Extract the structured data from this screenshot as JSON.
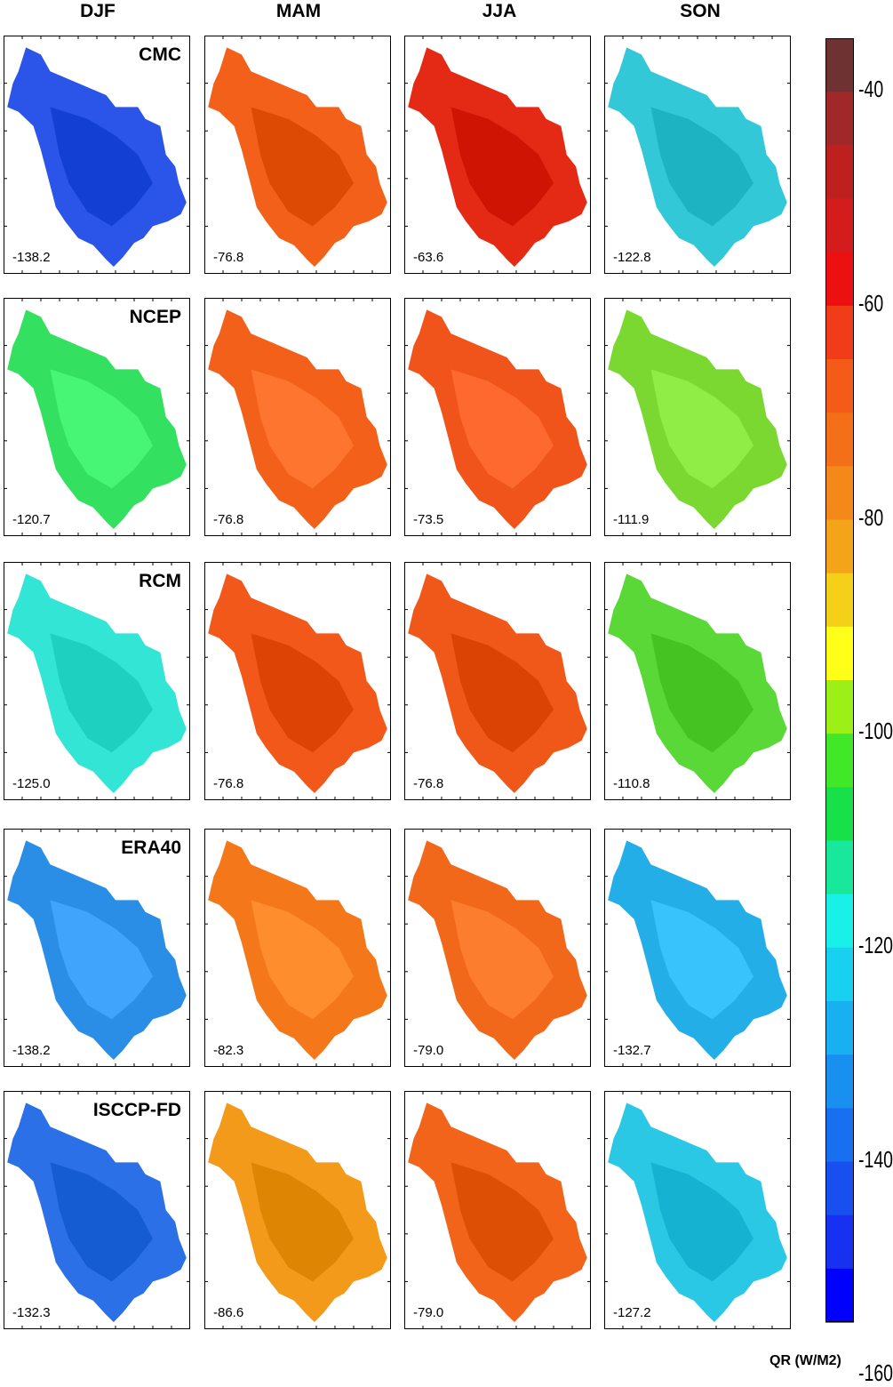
{
  "columns": [
    "DJF",
    "MAM",
    "JJA",
    "SON"
  ],
  "rows": [
    {
      "model": "CMC",
      "means": [
        "-138.2",
        "-76.8",
        "-63.6",
        "-122.8"
      ],
      "fill": [
        "#2a55e8",
        "#f2601a",
        "#e42a15",
        "#33c8d8"
      ]
    },
    {
      "model": "NCEP",
      "means": [
        "-120.7",
        "-76.8",
        "-73.5",
        "-111.9"
      ],
      "fill": [
        "#33e060",
        "#f2601a",
        "#f0541a",
        "#7ad830"
      ]
    },
    {
      "model": "RCM",
      "means": [
        "-125.0",
        "-76.8",
        "-76.8",
        "-110.8"
      ],
      "fill": [
        "#33e5d5",
        "#f2581a",
        "#f0581a",
        "#5ad838"
      ]
    },
    {
      "model": "ERA40",
      "means": [
        "-138.2",
        "-82.3",
        "-79.0",
        "-132.7"
      ],
      "fill": [
        "#2b8ee6",
        "#f4781a",
        "#f2681a",
        "#24aee8"
      ]
    },
    {
      "model": "ISCCP-FD",
      "means": [
        "-132.3",
        "-86.6",
        "-79.0",
        "-127.2"
      ],
      "fill": [
        "#2b70e6",
        "#f49a1a",
        "#f2641a",
        "#2bc8e6"
      ]
    }
  ],
  "colorbar": {
    "labels": [
      "-40",
      "-60",
      "-80",
      "-100",
      "-120",
      "-140",
      "-160"
    ],
    "units": "QR (W/M2)",
    "colors": [
      "#6e3232",
      "#a02828",
      "#be2020",
      "#d41c1c",
      "#ec1010",
      "#f03c18",
      "#f45a18",
      "#f47018",
      "#f48818",
      "#f4a418",
      "#f4d018",
      "#ffff18",
      "#9cf018",
      "#40e828",
      "#18e048",
      "#18e89c",
      "#18f0e8",
      "#18d0f0",
      "#18b0f0",
      "#1890f0",
      "#1870f0",
      "#1850f0",
      "#1830f0",
      "#0000ff"
    ]
  }
}
